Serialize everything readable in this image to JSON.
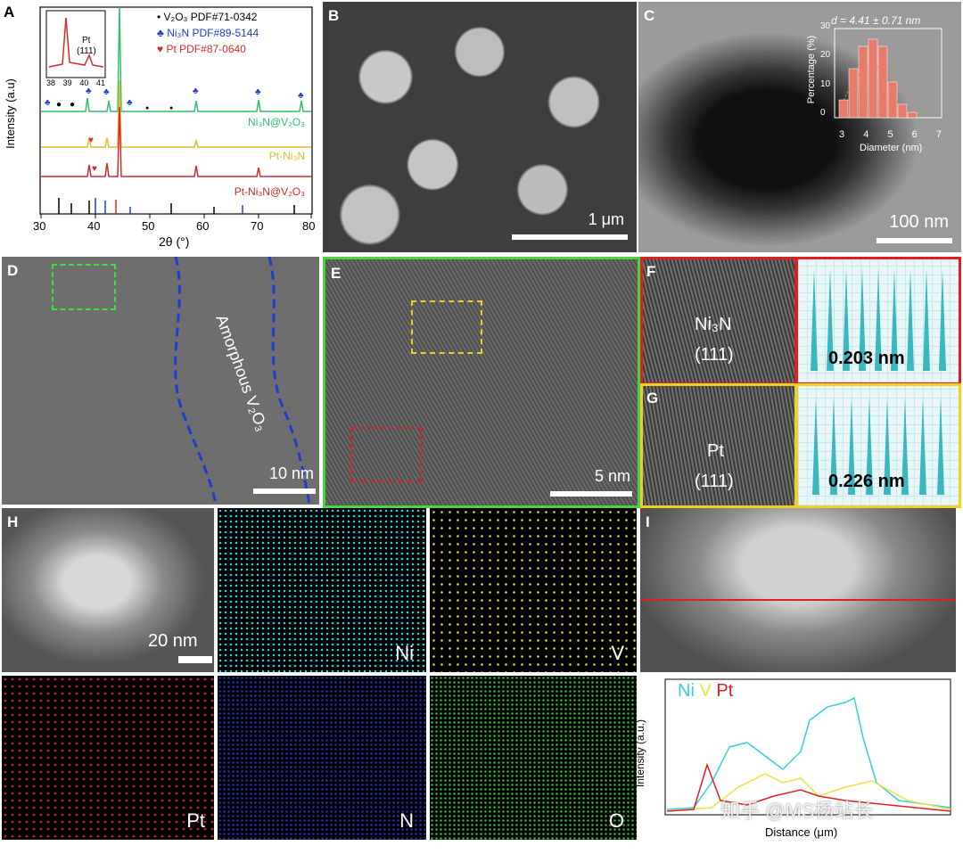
{
  "panels": {
    "A": {
      "label": "A",
      "ylabel": "Intensity (a.u)",
      "xlabel": "2θ (°)",
      "xticks": [
        "30",
        "40",
        "50",
        "60",
        "70",
        "80"
      ],
      "legend": [
        {
          "marker": "•",
          "text": "V₂O₃ PDF#71-0342",
          "color": "#000000"
        },
        {
          "marker": "♣",
          "text": "Ni₃N PDF#89-5144",
          "color": "#1f3fbf"
        },
        {
          "marker": "♥",
          "text": "Pt PDF#87-0640",
          "color": "#d42a2a"
        }
      ],
      "traces": [
        {
          "name": "Ni₃N@V₂O₃",
          "color": "#2fbf6f"
        },
        {
          "name": "Pt-Ni₃N",
          "color": "#e8b830"
        },
        {
          "name": "Pt-Ni₃N@V₂O₃",
          "color": "#d42a2a"
        }
      ],
      "inset": {
        "label": "Pt",
        "sublabel": "(111)",
        "ticks": [
          "38",
          "39",
          "40",
          "41"
        ]
      }
    },
    "B": {
      "label": "B",
      "scale": "1 μm"
    },
    "C": {
      "label": "C",
      "scale": "100 nm",
      "inset_title": "d = 4.41 ± 0.71 nm",
      "inset_ylabel": "Percentage (%)",
      "inset_xlabel": "Diameter (nm)",
      "inset_xticks": [
        "3",
        "4",
        "5",
        "6",
        "7"
      ],
      "inset_yticks": [
        "0",
        "10",
        "20",
        "30"
      ]
    },
    "D": {
      "label": "D",
      "scale": "10 nm",
      "annotation": "Amorphous V₂O₃"
    },
    "E": {
      "label": "E",
      "scale": "5 nm"
    },
    "F": {
      "label": "F",
      "phase": "Ni₃N",
      "plane": "(111)",
      "spacing": "0.203 nm"
    },
    "G": {
      "label": "G",
      "phase": "Pt",
      "plane": "(111)",
      "spacing": "0.226 nm"
    },
    "H": {
      "label": "H",
      "scale": "20 nm",
      "maps": [
        "Ni",
        "V",
        "Pt",
        "N",
        "O"
      ]
    },
    "I": {
      "label": "I",
      "legend": [
        "Ni",
        "V",
        "Pt"
      ],
      "ylabel": "Intensity (a.u.)",
      "xlabel": "Distance (μm)"
    }
  },
  "colors": {
    "ni": "#35d0e0",
    "v": "#f0e040",
    "pt": "#e02020",
    "n": "#2030c0",
    "o": "#30c030"
  },
  "watermark": "知乎 @MS杨站长"
}
